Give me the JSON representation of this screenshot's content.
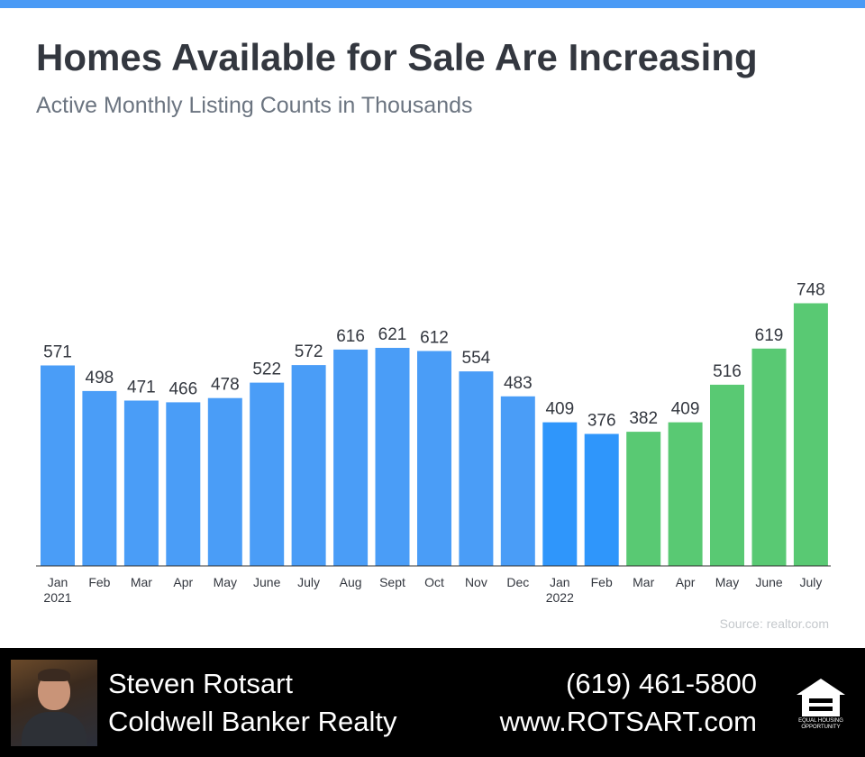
{
  "title": "Homes Available for Sale Are Increasing",
  "subtitle": "Active Monthly Listing Counts in Thousands",
  "source": "Source: realtor.com",
  "colors": {
    "blue_2021": "#4a9df7",
    "blue_2022": "#2f96fb",
    "green": "#59c973",
    "axis": "#333333",
    "text": "#33373f",
    "top_bar": "#4a9af5"
  },
  "chart_data": {
    "type": "bar",
    "title": "Homes Available for Sale Are Increasing",
    "subtitle": "Active Monthly Listing Counts in Thousands",
    "categories": [
      "Jan",
      "Feb",
      "Mar",
      "Apr",
      "May",
      "June",
      "July",
      "Aug",
      "Sept",
      "Oct",
      "Nov",
      "Dec",
      "Jan",
      "Feb",
      "Mar",
      "Apr",
      "May",
      "June",
      "July"
    ],
    "year_labels": [
      "2021",
      "",
      "",
      "",
      "",
      "",
      "",
      "",
      "",
      "",
      "",
      "",
      "2022",
      "",
      "",
      "",
      "",
      "",
      ""
    ],
    "values": [
      571,
      498,
      471,
      466,
      478,
      522,
      572,
      616,
      621,
      612,
      554,
      483,
      409,
      376,
      382,
      409,
      516,
      619,
      748
    ],
    "bar_colors": [
      "#4a9df7",
      "#4a9df7",
      "#4a9df7",
      "#4a9df7",
      "#4a9df7",
      "#4a9df7",
      "#4a9df7",
      "#4a9df7",
      "#4a9df7",
      "#4a9df7",
      "#4a9df7",
      "#4a9df7",
      "#2f96fb",
      "#2f96fb",
      "#59c973",
      "#59c973",
      "#59c973",
      "#59c973",
      "#59c973"
    ],
    "xlabel": "",
    "ylabel": "",
    "ylim": [
      0,
      800
    ],
    "grid": false,
    "legend": "none",
    "data_labels": true
  },
  "footer": {
    "agent_name": "Steven Rotsart",
    "company": "Coldwell Banker Realty",
    "phone": "(619) 461-5800",
    "website": "www.ROTSART.com",
    "badge_icon": "equal-housing-opportunity-icon",
    "badge_text": "EQUAL HOUSING OPPORTUNITY"
  }
}
